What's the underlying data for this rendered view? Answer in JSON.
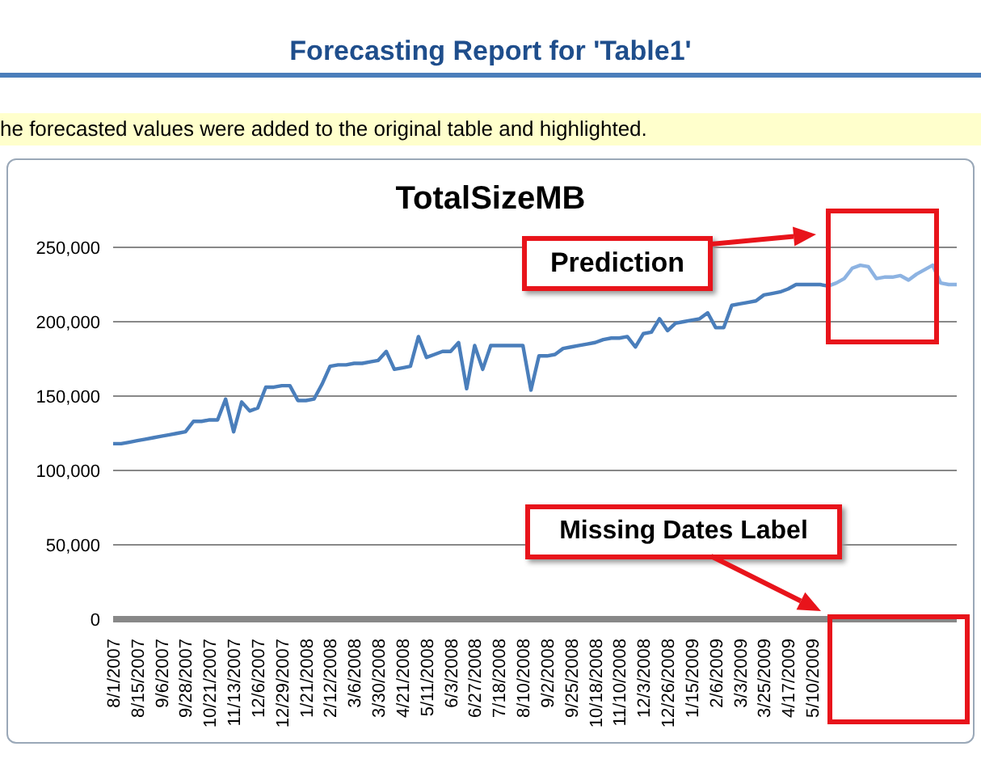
{
  "chart_data": {
    "type": "line",
    "title": "TotalSizeMB",
    "subtitle": "Forecasting Report for 'Table1'",
    "annotations": [
      "he forecasted values were added to the original table and highlighted.",
      "Prediction",
      "Missing Dates Label"
    ],
    "categories": [
      "8/1/2007",
      null,
      null,
      "8/15/2007",
      null,
      null,
      "9/6/2007",
      null,
      null,
      "9/28/2007",
      null,
      null,
      "10/21/2007",
      null,
      null,
      "11/13/2007",
      null,
      null,
      "12/6/2007",
      null,
      null,
      "12/29/2007",
      null,
      null,
      "1/21/2008",
      null,
      null,
      "2/12/2008",
      null,
      null,
      "3/6/2008",
      null,
      null,
      "3/30/2008",
      null,
      null,
      "4/21/2008",
      null,
      null,
      "5/11/2008",
      null,
      null,
      "6/3/2008",
      null,
      null,
      "6/27/2008",
      null,
      null,
      "7/18/2008",
      null,
      null,
      "8/10/2008",
      null,
      null,
      "9/2/2008",
      null,
      null,
      "9/25/2008",
      null,
      null,
      "10/18/2008",
      null,
      null,
      "11/10/2008",
      null,
      null,
      "12/3/2008",
      null,
      null,
      "12/26/2008",
      null,
      null,
      "1/15/2009",
      null,
      null,
      "2/6/2009",
      null,
      null,
      "3/3/2009",
      null,
      null,
      "3/25/2009",
      null,
      null,
      "4/17/2009",
      null,
      null,
      "5/10/2009",
      null,
      null,
      null,
      null,
      null,
      null,
      null,
      null,
      null,
      null,
      null,
      null,
      null,
      null,
      null,
      null,
      null,
      null
    ],
    "series": [
      {
        "color": "#4a7ebb",
        "values": [
          118000,
          118000,
          119000,
          120000,
          121000,
          122000,
          123000,
          124000,
          125000,
          126000,
          133000,
          133000,
          134000,
          134000,
          148000,
          126000,
          146000,
          140000,
          142000,
          156000,
          156000,
          157000,
          157000,
          147000,
          147000,
          148000,
          158000,
          170000,
          171000,
          171000,
          172000,
          172000,
          173000,
          174000,
          180000,
          168000,
          169000,
          170000,
          190000,
          176000,
          178000,
          180000,
          180000,
          186000,
          155000,
          184000,
          168000,
          184000,
          184000,
          184000,
          184000,
          184000,
          154000,
          177000,
          177000,
          178000,
          182000,
          183000,
          184000,
          185000,
          186000,
          188000,
          189000,
          189000,
          190000,
          183000,
          192000,
          193000,
          202000,
          194000,
          199000,
          200000,
          201000,
          202000,
          206000,
          196000,
          196000,
          211000,
          212000,
          213000,
          214000,
          218000,
          219000,
          220000,
          222000,
          225000,
          225000,
          225000,
          225000,
          224000,
          null,
          null,
          null,
          null,
          null,
          null,
          null,
          null,
          null,
          null,
          null,
          null,
          null,
          null,
          null,
          null
        ]
      },
      {
        "color": "#8db3e2",
        "values": [
          null,
          null,
          null,
          null,
          null,
          null,
          null,
          null,
          null,
          null,
          null,
          null,
          null,
          null,
          null,
          null,
          null,
          null,
          null,
          null,
          null,
          null,
          null,
          null,
          null,
          null,
          null,
          null,
          null,
          null,
          null,
          null,
          null,
          null,
          null,
          null,
          null,
          null,
          null,
          null,
          null,
          null,
          null,
          null,
          null,
          null,
          null,
          null,
          null,
          null,
          null,
          null,
          null,
          null,
          null,
          null,
          null,
          null,
          null,
          null,
          null,
          null,
          null,
          null,
          null,
          null,
          null,
          null,
          null,
          null,
          null,
          null,
          null,
          null,
          null,
          null,
          null,
          null,
          null,
          null,
          null,
          null,
          null,
          null,
          null,
          null,
          null,
          null,
          null,
          224000,
          226000,
          229000,
          236000,
          238000,
          237000,
          229000,
          230000,
          230000,
          231000,
          228000,
          232000,
          235000,
          238000,
          226000,
          225000,
          225000
        ]
      }
    ],
    "ylim": [
      0,
      250000
    ],
    "yticks": [
      0,
      {
        "value": 50000,
        "label": "50,000"
      },
      {
        "value": 100000,
        "label": "100,000"
      },
      {
        "value": 150000,
        "label": "150,000"
      },
      {
        "value": 200000,
        "label": "200,000"
      },
      {
        "value": 250000,
        "label": "250,000"
      }
    ],
    "grid": "y",
    "marker": "none",
    "line_style": "solid"
  }
}
